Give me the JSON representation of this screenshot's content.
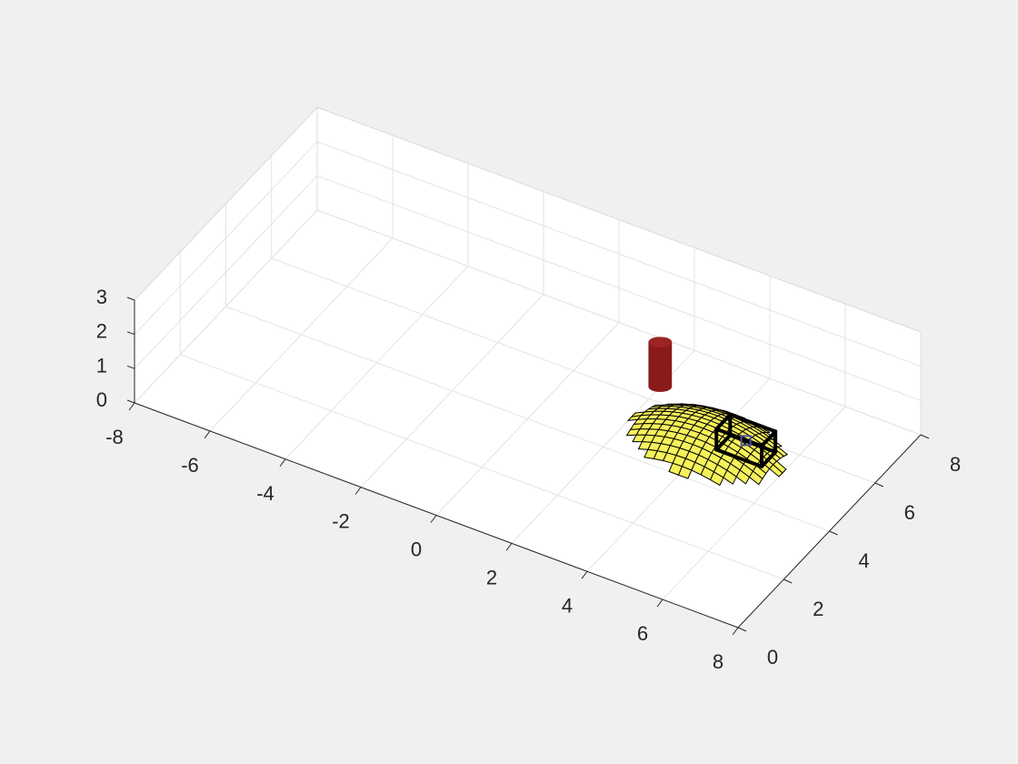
{
  "chart_data": {
    "type": "3d-scene",
    "title": "",
    "xlabel": "",
    "ylabel": "",
    "zlabel": "",
    "grid": true,
    "box": true,
    "xlim": [
      -8,
      8
    ],
    "ylim": [
      0,
      8
    ],
    "zlim": [
      0,
      3
    ],
    "xticks": [
      -8,
      -6,
      -4,
      -2,
      0,
      2,
      4,
      6,
      8
    ],
    "yticks": [
      0,
      2,
      4,
      6,
      8
    ],
    "zticks": [
      0,
      1,
      2,
      3
    ],
    "objects": [
      {
        "name": "cylinder",
        "color": "#8b1a1a",
        "center": [
          2,
          6.5
        ],
        "radius": 0.3,
        "height": 1.3
      },
      {
        "name": "mesh-surface",
        "color": "#f7f25a",
        "edge_color": "#000000",
        "x_range": [
          2,
          6
        ],
        "y_range": [
          4,
          6.5
        ],
        "peak_height": 0.6
      },
      {
        "name": "wire-box",
        "color": "#000000",
        "center": [
          5,
          5.3
        ],
        "size": [
          1.2,
          0.6,
          0.6
        ]
      },
      {
        "name": "marker",
        "color": "#5050a0",
        "center": [
          5,
          5.3
        ]
      }
    ]
  },
  "colors": {
    "figure_background": "#f0f0f0",
    "axes_background": "#ffffff",
    "grid": "#e3e3e3",
    "axis": "#262626"
  }
}
